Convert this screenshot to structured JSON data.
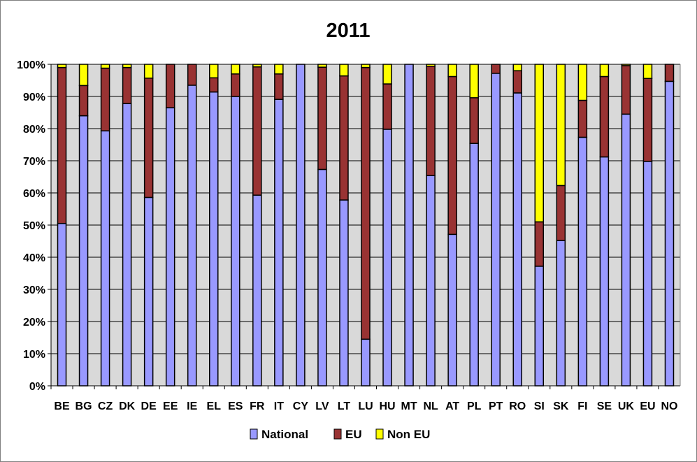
{
  "chart_data": {
    "type": "bar",
    "stacked": true,
    "title": "2011",
    "xlabel": "",
    "ylabel": "",
    "ylim": [
      0,
      100
    ],
    "y_ticks": [
      "0%",
      "10%",
      "20%",
      "30%",
      "40%",
      "50%",
      "60%",
      "70%",
      "80%",
      "90%",
      "100%"
    ],
    "grid": true,
    "legend_position": "bottom",
    "categories": [
      "BE",
      "BG",
      "CZ",
      "DK",
      "DE",
      "EE",
      "IE",
      "EL",
      "ES",
      "FR",
      "IT",
      "CY",
      "LV",
      "LT",
      "LU",
      "HU",
      "MT",
      "NL",
      "AT",
      "PL",
      "PT",
      "RO",
      "SI",
      "SK",
      "FI",
      "SE",
      "UK",
      "EU",
      "NO"
    ],
    "series": [
      {
        "name": "National",
        "color": "#9999ff",
        "values": [
          50.5,
          84,
          79.3,
          87.8,
          58.6,
          86.5,
          93.5,
          91.4,
          90,
          59.3,
          89.1,
          100,
          67.3,
          57.8,
          14.5,
          79.8,
          100,
          65.4,
          47.1,
          75.4,
          97.2,
          91.1,
          37.2,
          45.2,
          77.3,
          71.2,
          84.5,
          69.8,
          94.7
        ]
      },
      {
        "name": "EU",
        "color": "#993333",
        "values": [
          48.5,
          9.4,
          19.5,
          11.2,
          37.1,
          13.5,
          6.5,
          4.4,
          7,
          39.9,
          7.9,
          0,
          31.8,
          38.6,
          84.5,
          14.1,
          0,
          34,
          49.1,
          14.2,
          2.8,
          6.9,
          13.8,
          17.1,
          11.5,
          25,
          15.1,
          25.8,
          5.3
        ]
      },
      {
        "name": "Non EU",
        "color": "#ffff00",
        "values": [
          1,
          6.6,
          1.2,
          1,
          4.3,
          0,
          0,
          4.2,
          3,
          0.8,
          3,
          0,
          0.9,
          3.6,
          1,
          6.1,
          0,
          0.6,
          3.8,
          10.4,
          0,
          2,
          49,
          37.7,
          11.2,
          3.8,
          0.4,
          4.4,
          0
        ]
      }
    ],
    "colors": {
      "plot_background": "#d9d9d9",
      "gridline": "#000000",
      "bar_outline": "#000000"
    }
  }
}
